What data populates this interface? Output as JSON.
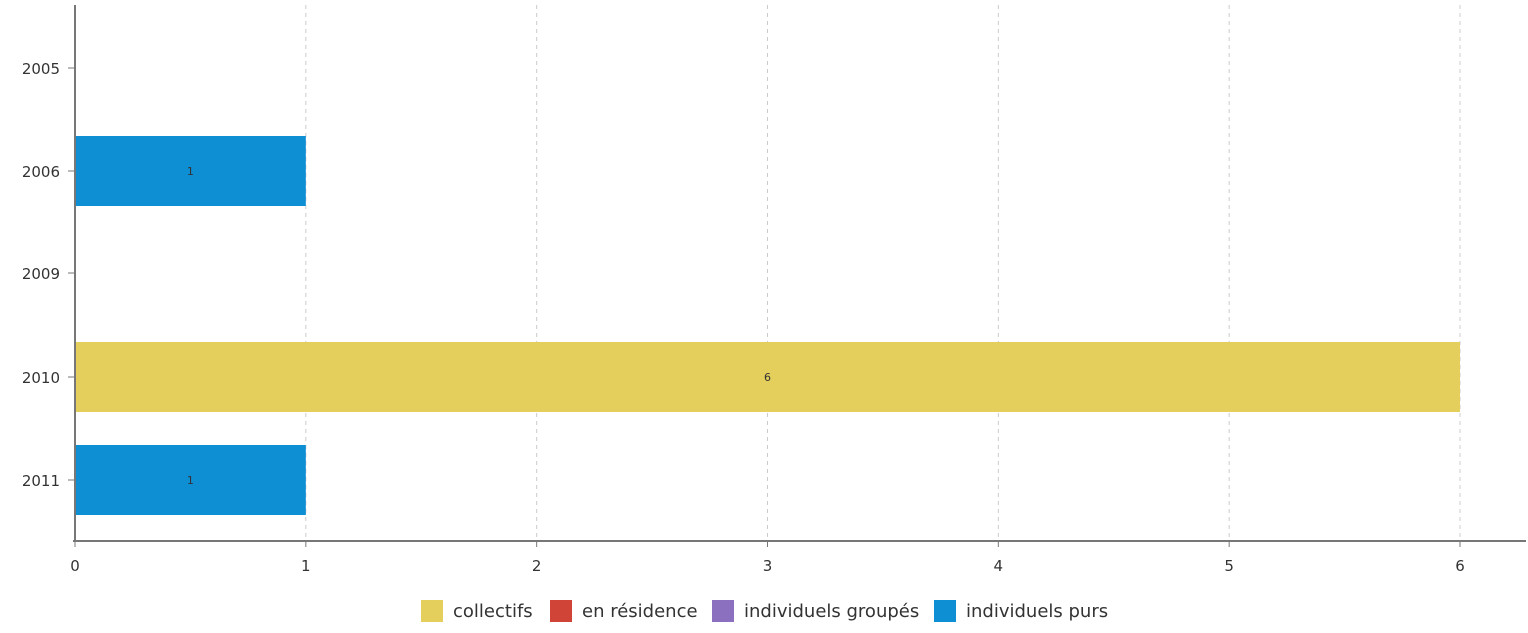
{
  "chart_data": {
    "type": "bar",
    "orientation": "horizontal",
    "stacked": true,
    "categories": [
      "2005",
      "2006",
      "2009",
      "2010",
      "2011"
    ],
    "series": [
      {
        "name": "collectifs",
        "color": "#E4CF5C",
        "values": [
          0,
          0,
          0,
          6,
          0
        ]
      },
      {
        "name": "en résidence",
        "color": "#D04437",
        "values": [
          0,
          0,
          0,
          0,
          0
        ]
      },
      {
        "name": "individuels groupés",
        "color": "#8A70BE",
        "values": [
          0,
          0,
          0,
          0,
          0
        ]
      },
      {
        "name": "individuels purs",
        "color": "#0F8FD3",
        "values": [
          0,
          1,
          0,
          0,
          1
        ]
      }
    ],
    "data_labels": [
      {
        "category": "2006",
        "text": "1"
      },
      {
        "category": "2010",
        "text": "6"
      },
      {
        "category": "2011",
        "text": "1"
      }
    ],
    "x_ticks": [
      "0",
      "1",
      "2",
      "3",
      "4",
      "5",
      "6"
    ],
    "xlim": [
      0,
      6
    ],
    "grid": "vertical dashed",
    "legend_position": "bottom-center",
    "title": "",
    "xlabel": "",
    "ylabel": ""
  }
}
